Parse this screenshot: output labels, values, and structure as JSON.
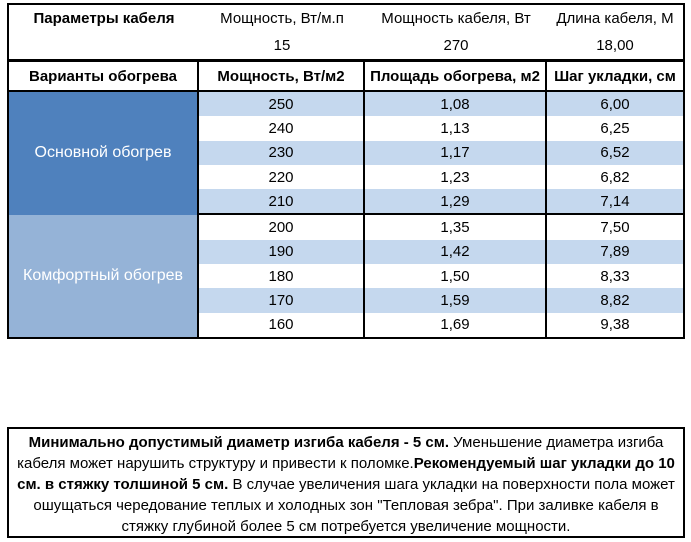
{
  "colors": {
    "main_group_bg": "#4F81BD",
    "comfort_group_bg": "#95B3D7",
    "band_row_bg": "#C5D8EE",
    "border": "#000000",
    "group_label_text": "#FFFFFF"
  },
  "top_table": {
    "title": "Параметры кабеля",
    "columns": [
      {
        "header": "Мощность, Вт/м.п",
        "value": "15"
      },
      {
        "header": "Мощность кабеля, Вт",
        "value": "270"
      },
      {
        "header": "Длина кабеля, М",
        "value": "18,00"
      }
    ]
  },
  "heating_table": {
    "headers": [
      "Варианты обогрева",
      "Мощность, Вт/м2",
      "Площадь обогрева, м2",
      "Шаг укладки, см"
    ],
    "groups": [
      {
        "label": "Основной обогрев",
        "rows": [
          [
            "250",
            "1,08",
            "6,00"
          ],
          [
            "240",
            "1,13",
            "6,25"
          ],
          [
            "230",
            "1,17",
            "6,52"
          ],
          [
            "220",
            "1,23",
            "6,82"
          ],
          [
            "210",
            "1,29",
            "7,14"
          ]
        ]
      },
      {
        "label": "Комфортный обогрев",
        "rows": [
          [
            "200",
            "1,35",
            "7,50"
          ],
          [
            "190",
            "1,42",
            "7,89"
          ],
          [
            "180",
            "1,50",
            "8,33"
          ],
          [
            "170",
            "1,59",
            "8,82"
          ],
          [
            "160",
            "1,69",
            "9,38"
          ]
        ]
      }
    ]
  },
  "note": {
    "segments": [
      {
        "text": "Минимально допустимый диаметр изгиба кабеля - 5 см.",
        "bold": true
      },
      {
        "text": " Уменьшение диаметра изгиба кабеля может нарушить структуру и привести к поломке.",
        "bold": false
      },
      {
        "text": "Рекомендуемый шаг укладки до 10 см. в стяжку толшиной 5 см.",
        "bold": true
      },
      {
        "text": " В случае увеличения шага укладки на поверхности пола может ошущаться чередование теплых и холодных зон \"Тепловая зебра\". При заливке кабеля в стяжку глубиной более 5 см потребуется увеличение мощности.",
        "bold": false
      }
    ]
  }
}
